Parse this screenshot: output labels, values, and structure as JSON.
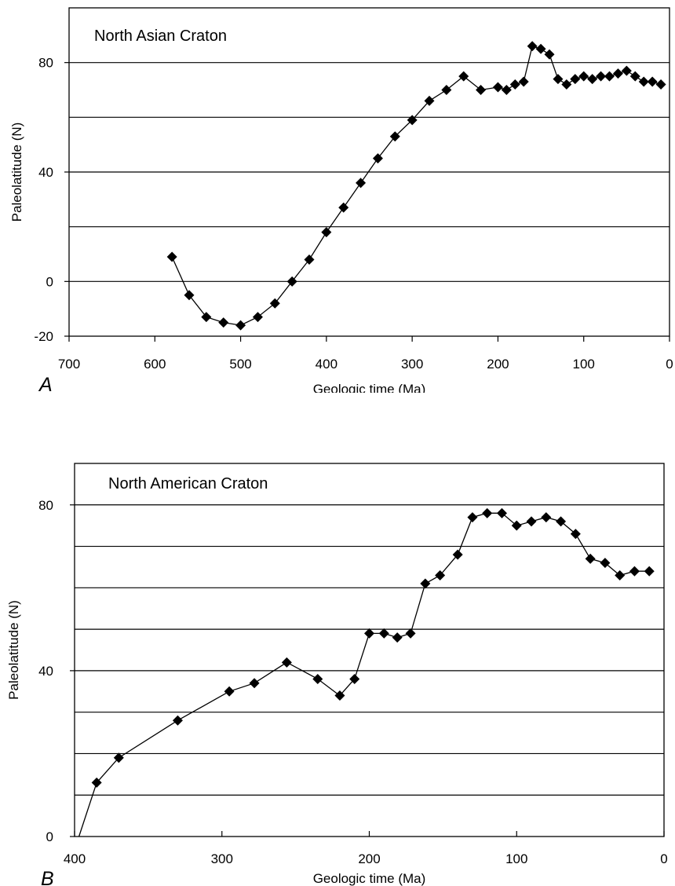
{
  "chart_data": [
    {
      "type": "line",
      "panel_label": "A",
      "title": "North Asian Craton",
      "xlabel": "Geologic time (Ma)",
      "ylabel": "Paleolatitude (N)",
      "xlim": [
        700,
        0
      ],
      "ylim": [
        -20,
        100
      ],
      "x_ticks": [
        700,
        600,
        500,
        400,
        300,
        200,
        100,
        0
      ],
      "x_tick_labels": [
        "700",
        "600",
        "500",
        "400",
        "300",
        "200",
        "100",
        "0"
      ],
      "y_tick_labels": [
        {
          "value": -20,
          "label": "-20"
        },
        {
          "value": 0,
          "label": "0"
        },
        {
          "value": 40,
          "label": "40"
        },
        {
          "value": 80,
          "label": "80"
        }
      ],
      "gridlines_y": [
        0,
        20,
        40,
        60,
        80
      ],
      "marker": "diamond",
      "series": [
        {
          "x": [
            580,
            560,
            540,
            520,
            500,
            480,
            460,
            440,
            420,
            400,
            380,
            360,
            340,
            320,
            300,
            280,
            260,
            240,
            220,
            200,
            190,
            180,
            170,
            160,
            150,
            140,
            130,
            120,
            110,
            100,
            90,
            80,
            70,
            60,
            50,
            40,
            30,
            20,
            10
          ],
          "y": [
            9,
            -5,
            -13,
            -15,
            -16,
            -13,
            -8,
            0,
            8,
            18,
            27,
            36,
            45,
            53,
            59,
            66,
            70,
            75,
            70,
            71,
            70,
            72,
            73,
            86,
            85,
            83,
            74,
            72,
            74,
            75,
            74,
            75,
            75,
            76,
            77,
            75,
            73,
            73,
            72
          ]
        }
      ]
    },
    {
      "type": "line",
      "panel_label": "B",
      "title": "North American Craton",
      "xlabel": "Geologic time (Ma)",
      "ylabel": "Paleolatitude (N)",
      "xlim": [
        400,
        0
      ],
      "ylim": [
        0,
        90
      ],
      "x_ticks": [
        400,
        300,
        200,
        100,
        0
      ],
      "x_tick_labels": [
        "400",
        "300",
        "200",
        "100",
        "0"
      ],
      "y_tick_labels": [
        {
          "value": 0,
          "label": "0"
        },
        {
          "value": 40,
          "label": "40"
        },
        {
          "value": 80,
          "label": "80"
        }
      ],
      "gridlines_y": [
        10,
        20,
        30,
        40,
        50,
        60,
        70,
        80
      ],
      "marker": "diamond",
      "series": [
        {
          "x": [
            397,
            385,
            370,
            330,
            295,
            278,
            256,
            235,
            220,
            210,
            200,
            190,
            181,
            172,
            162,
            152,
            140,
            130,
            120,
            110,
            100,
            90,
            80,
            70,
            60,
            50,
            40,
            30,
            20,
            10
          ],
          "y": [
            0,
            13,
            19,
            28,
            35,
            37,
            42,
            38,
            34,
            38,
            49,
            49,
            48,
            49,
            61,
            63,
            68,
            77,
            78,
            78,
            75,
            76,
            77,
            76,
            73,
            67,
            66,
            63,
            64,
            64
          ]
        }
      ]
    }
  ]
}
